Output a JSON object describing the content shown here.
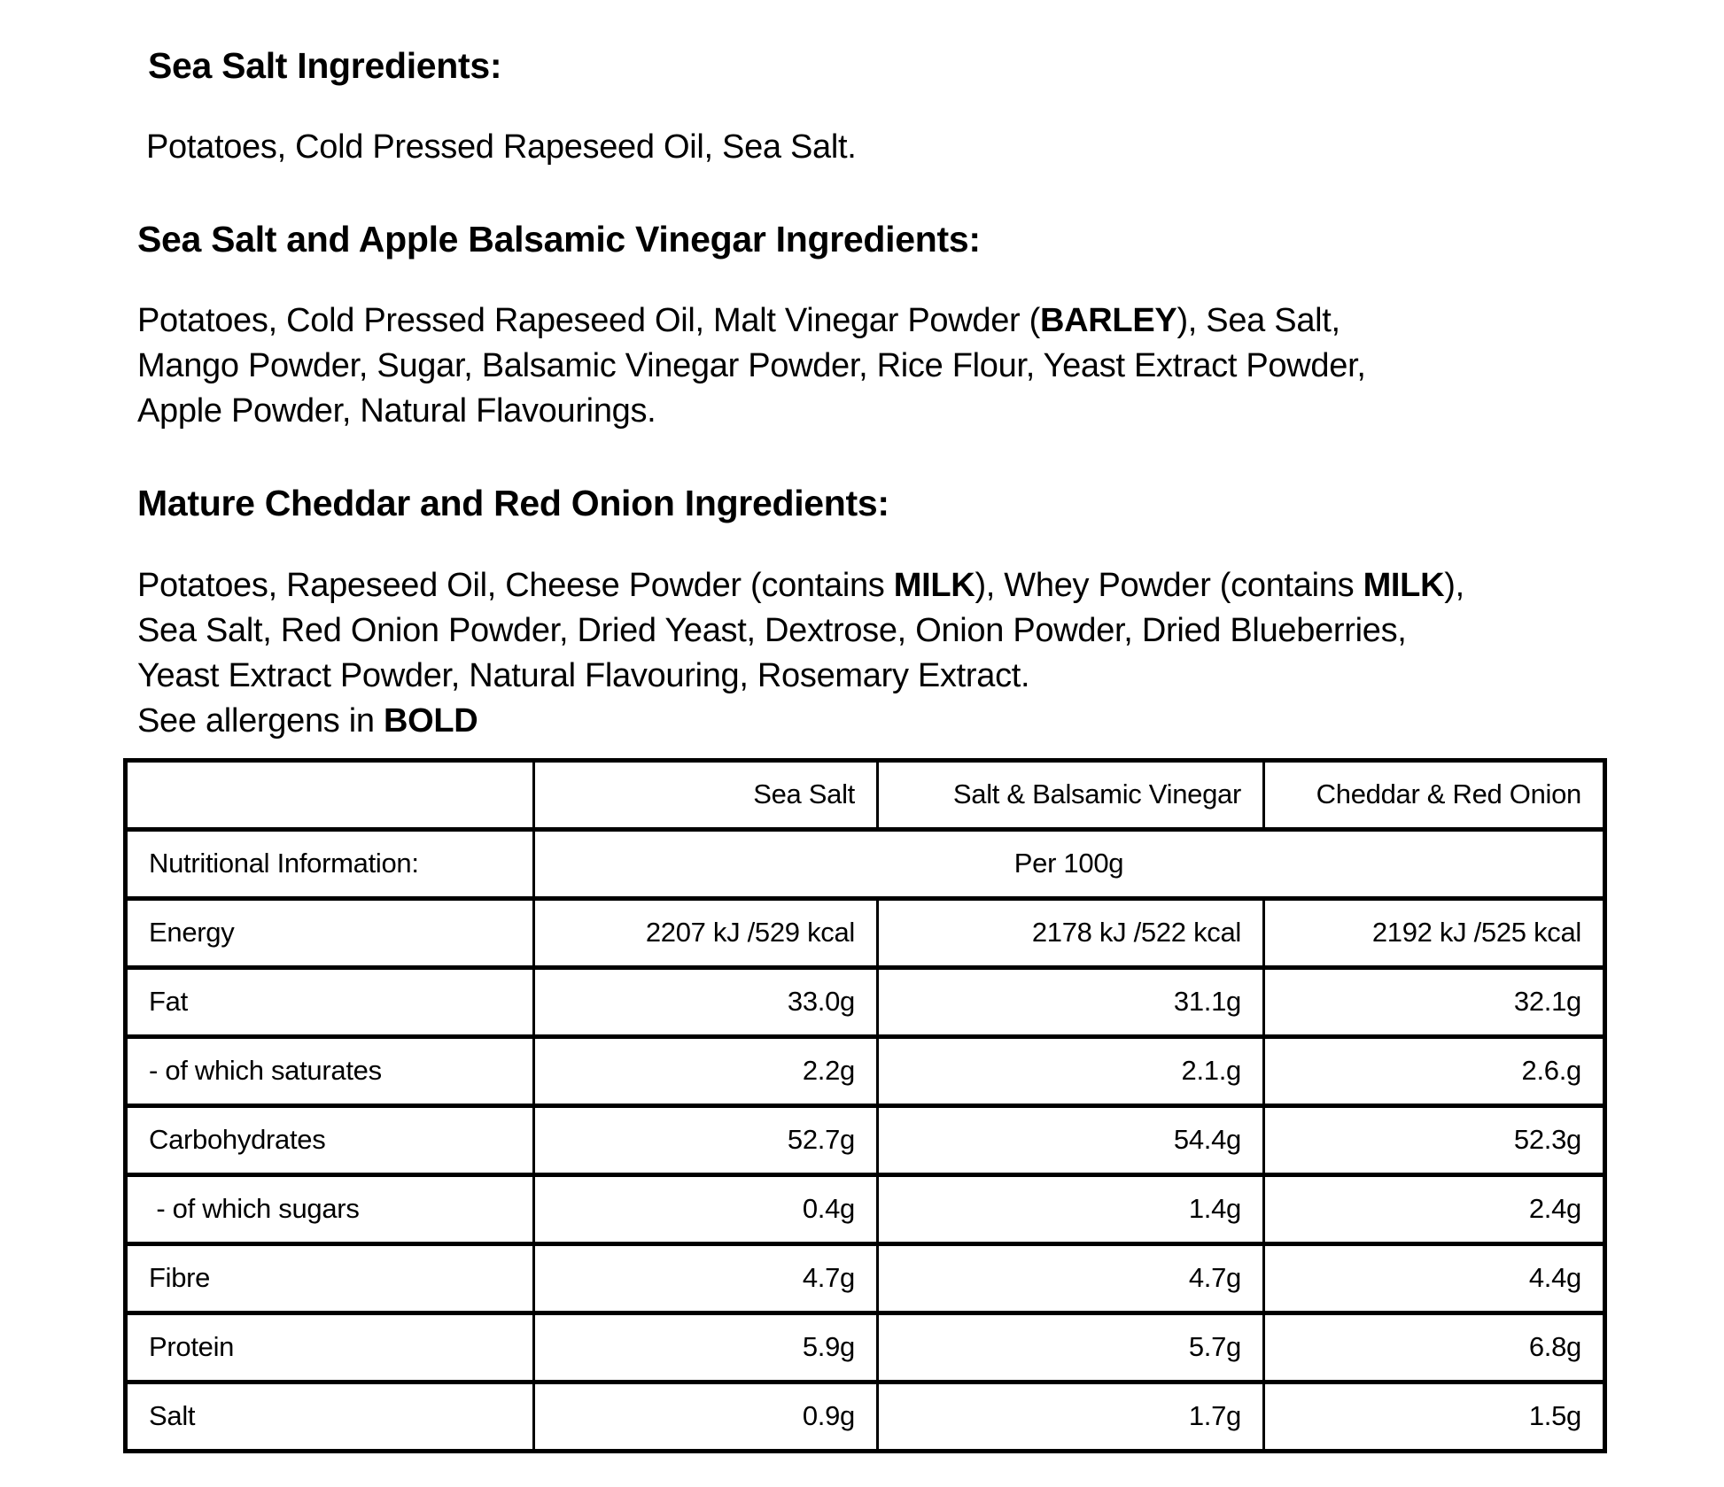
{
  "sections": [
    {
      "type": "heading",
      "text": "Sea Salt Ingredients:"
    },
    {
      "type": "paragraph",
      "lines": [
        [
          {
            "t": "Potatoes, Cold Pressed Rapeseed Oil, Sea Salt."
          }
        ]
      ]
    },
    {
      "type": "heading",
      "text": "Sea Salt and Apple Balsamic Vinegar Ingredients:"
    },
    {
      "type": "paragraph",
      "lines": [
        [
          {
            "t": "Potatoes, Cold Pressed Rapeseed Oil, Malt Vinegar Powder ("
          },
          {
            "t": "BARLEY",
            "b": true
          },
          {
            "t": "), Sea Salt,"
          }
        ],
        [
          {
            "t": "Mango Powder, Sugar, Balsamic Vinegar Powder, Rice Flour, Yeast Extract Powder,"
          }
        ],
        [
          {
            "t": "Apple Powder, Natural Flavourings."
          }
        ]
      ]
    },
    {
      "type": "heading",
      "text": "Mature Cheddar and Red Onion Ingredients:"
    },
    {
      "type": "paragraph",
      "lines": [
        [
          {
            "t": "Potatoes, Rapeseed Oil, Cheese Powder (contains "
          },
          {
            "t": "MILK",
            "b": true
          },
          {
            "t": "), Whey Powder (contains "
          },
          {
            "t": "MILK",
            "b": true
          },
          {
            "t": "),"
          }
        ],
        [
          {
            "t": "Sea Salt, Red Onion Powder, Dried Yeast, Dextrose, Onion Powder, Dried Blueberries,"
          }
        ],
        [
          {
            "t": "Yeast Extract Powder, Natural Flavouring, Rosemary Extract."
          }
        ],
        [
          {
            "t": "See allergens in "
          },
          {
            "t": "BOLD",
            "b": true
          }
        ]
      ]
    }
  ],
  "table": {
    "columns": [
      "",
      "Sea Salt",
      "Salt & Balsamic Vinegar",
      "Cheddar & Red Onion"
    ],
    "subheader": {
      "label": "Nutritional Information:",
      "value": "Per 100g"
    },
    "rows": [
      {
        "label": "Energy",
        "values": [
          "2207 kJ /529 kcal",
          "2178 kJ /522 kcal",
          "2192 kJ /525 kcal"
        ]
      },
      {
        "label": "Fat",
        "values": [
          "33.0g",
          "31.1g",
          "32.1g"
        ]
      },
      {
        "label": "- of which saturates",
        "values": [
          "2.2g",
          "2.1.g",
          "2.6.g"
        ]
      },
      {
        "label": "Carbohydrates",
        "values": [
          "52.7g",
          "54.4g",
          "52.3g"
        ]
      },
      {
        "label": " - of which sugars",
        "values": [
          "0.4g",
          "1.4g",
          "2.4g"
        ]
      },
      {
        "label": "Fibre",
        "values": [
          "4.7g",
          "4.7g",
          "4.4g"
        ]
      },
      {
        "label": "Protein",
        "values": [
          "5.9g",
          "5.7g",
          "6.8g"
        ]
      },
      {
        "label": "Salt",
        "values": [
          "0.9g",
          "1.7g",
          "1.5g"
        ]
      }
    ]
  }
}
